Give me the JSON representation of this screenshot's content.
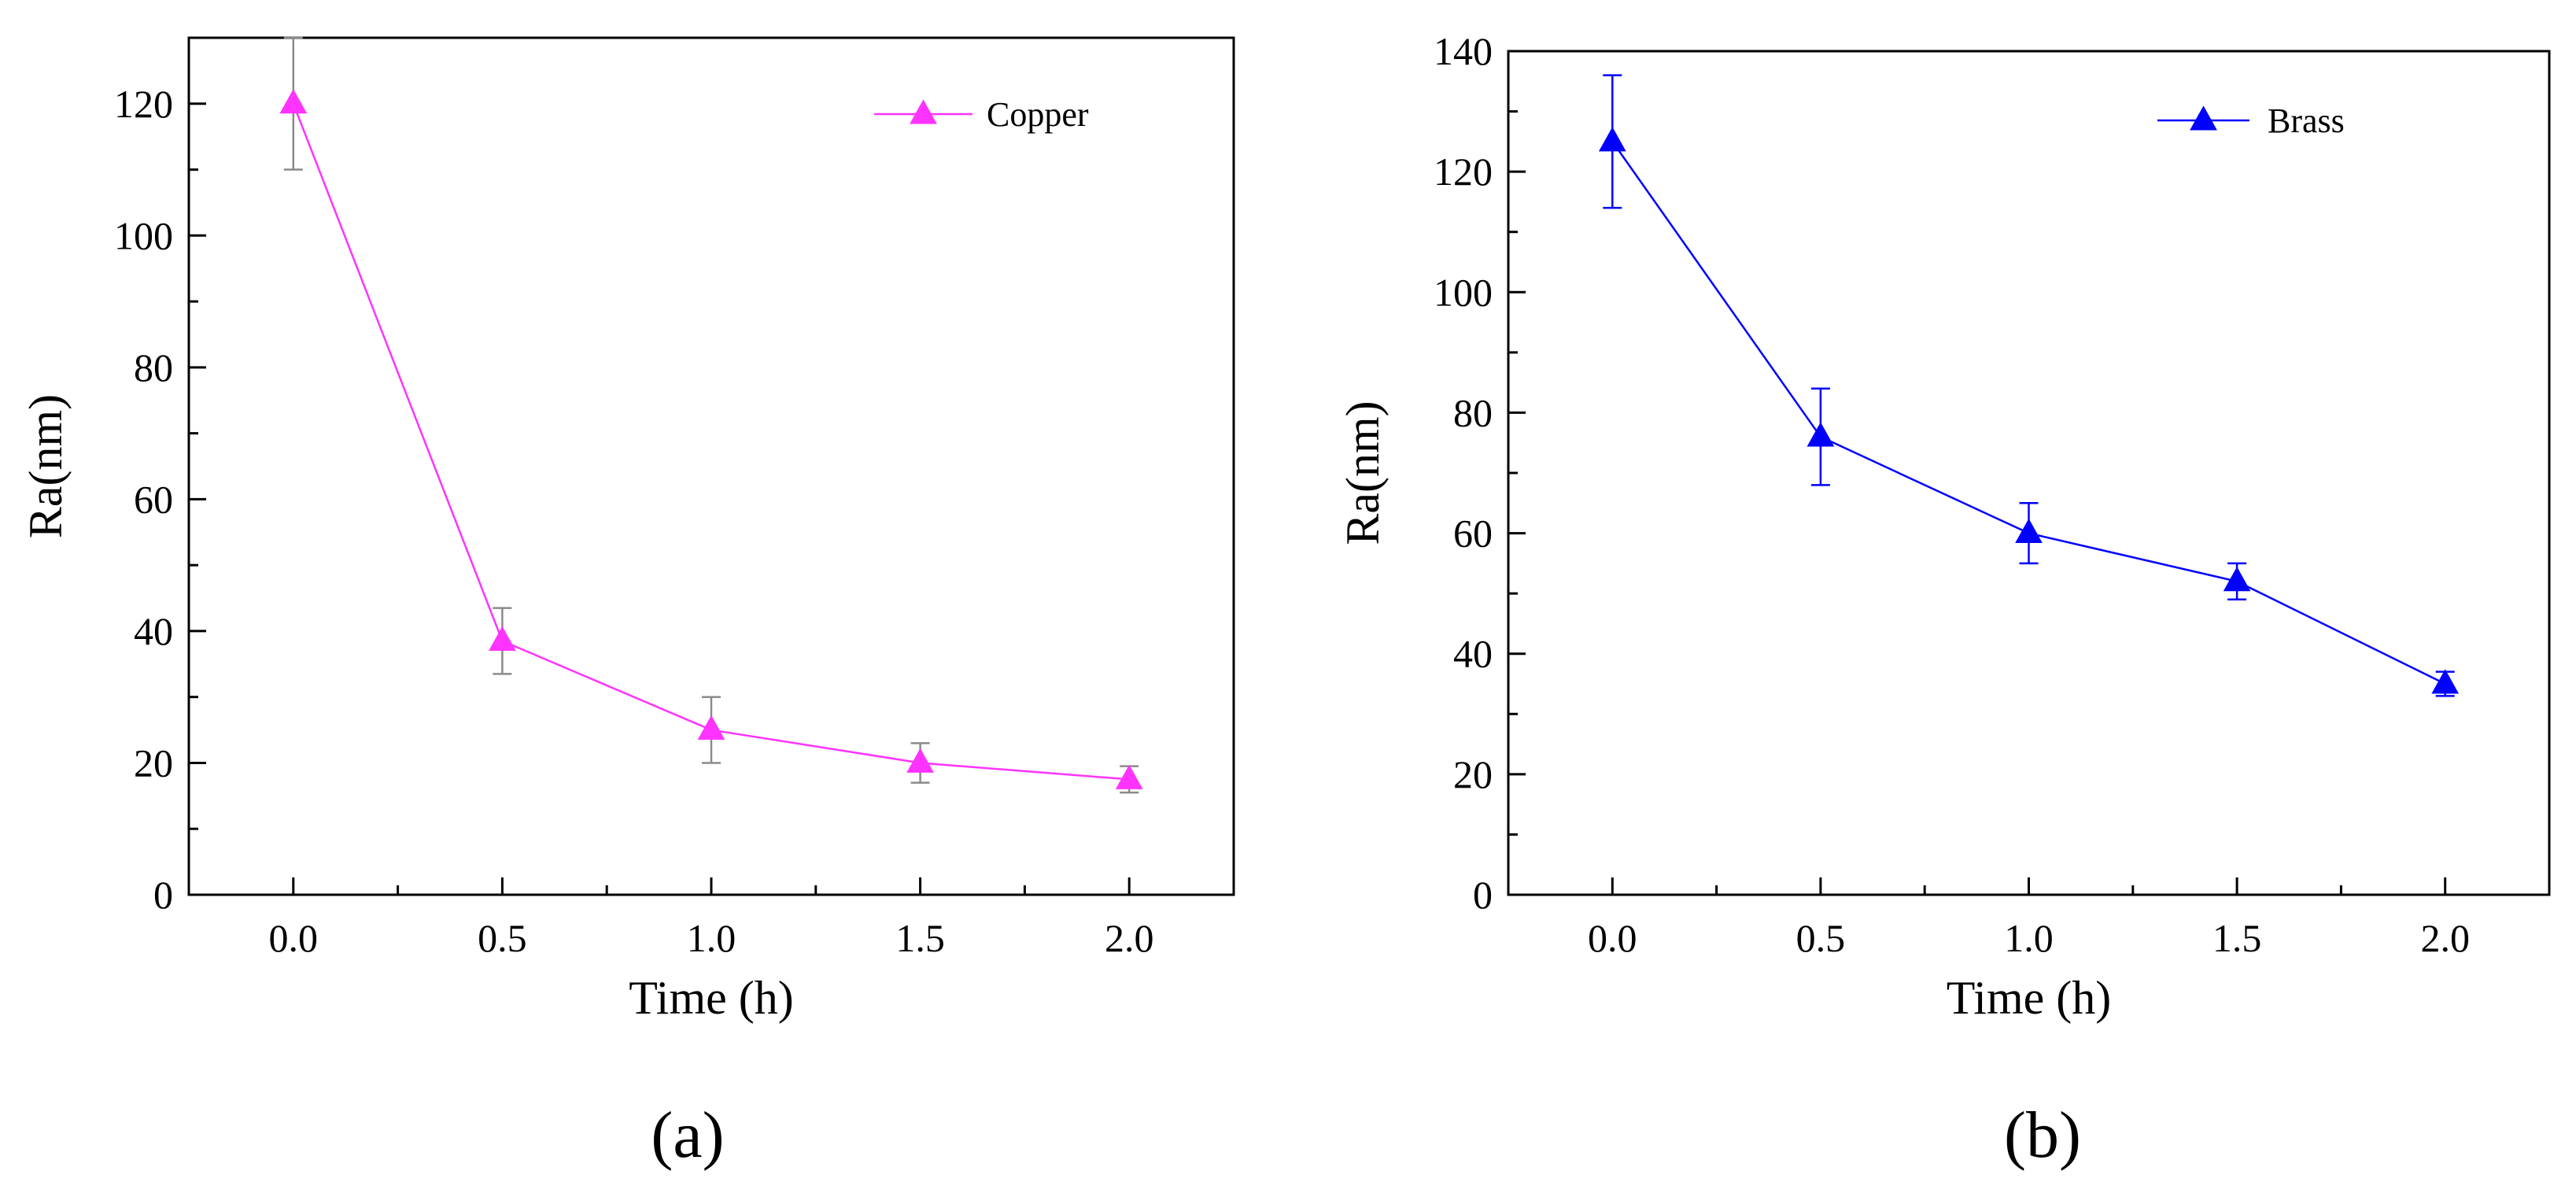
{
  "chart_data": [
    {
      "type": "line",
      "panel_label": "(a)",
      "xlabel": "Time (h)",
      "ylabel": "Ra(nm)",
      "xlim": [
        -0.25,
        2.25
      ],
      "ylim": [
        0,
        130
      ],
      "xticks": [
        0.0,
        0.5,
        1.0,
        1.5,
        2.0
      ],
      "xtick_labels": [
        "0.0",
        "0.5",
        "1.0",
        "1.5",
        "2.0"
      ],
      "yticks": [
        0,
        20,
        40,
        60,
        80,
        100,
        120
      ],
      "ytick_labels": [
        "0",
        "20",
        "40",
        "60",
        "80",
        "100",
        "120"
      ],
      "legend_position": "top-right",
      "series": [
        {
          "name": "Copper",
          "color": "#ff33ff",
          "error_color": "#8a8a8a",
          "marker": "triangle",
          "x": [
            0.0,
            0.5,
            1.0,
            1.5,
            2.0
          ],
          "values": [
            120,
            38.5,
            25,
            20,
            17.5
          ],
          "errors": [
            10,
            5,
            5,
            3,
            2
          ]
        }
      ]
    },
    {
      "type": "line",
      "panel_label": "(b)",
      "xlabel": "Time (h)",
      "ylabel": "Ra(nm)",
      "xlim": [
        -0.25,
        2.25
      ],
      "ylim": [
        0,
        140
      ],
      "xticks": [
        0.0,
        0.5,
        1.0,
        1.5,
        2.0
      ],
      "xtick_labels": [
        "0.0",
        "0.5",
        "1.0",
        "1.5",
        "2.0"
      ],
      "yticks": [
        0,
        20,
        40,
        60,
        80,
        100,
        120,
        140
      ],
      "ytick_labels": [
        "0",
        "20",
        "40",
        "60",
        "80",
        "100",
        "120",
        "140"
      ],
      "legend_position": "top-right",
      "series": [
        {
          "name": "Brass",
          "color": "#0000ff",
          "error_color": "#0000ff",
          "marker": "triangle",
          "x": [
            0.0,
            0.5,
            1.0,
            1.5,
            2.0
          ],
          "values": [
            125,
            76,
            60,
            52,
            35
          ],
          "errors": [
            11,
            8,
            5,
            3,
            2
          ]
        }
      ]
    }
  ]
}
